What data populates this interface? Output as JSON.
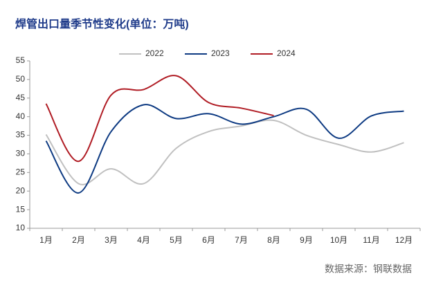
{
  "chart_data": {
    "type": "line",
    "title": "焊管出口量季节性变化(单位：万吨)",
    "source": "数据来源：钢联数据",
    "categories": [
      "1月",
      "2月",
      "3月",
      "4月",
      "5月",
      "6月",
      "7月",
      "8月",
      "9月",
      "10月",
      "11月",
      "12月"
    ],
    "series": [
      {
        "name": "2022",
        "color": "#c0c0c0",
        "values": [
          35.2,
          22,
          26,
          22,
          31.5,
          36,
          37.5,
          39,
          35,
          32.5,
          30.5,
          33
        ]
      },
      {
        "name": "2023",
        "color": "#0d3a82",
        "values": [
          33.5,
          19.5,
          36,
          43.2,
          39.5,
          40.8,
          38,
          40,
          42,
          34.2,
          40.2,
          41.5
        ]
      },
      {
        "name": "2024",
        "color": "#b01c24",
        "values": [
          43.5,
          28,
          45.8,
          47.3,
          51,
          43.8,
          42.3,
          40.3,
          null,
          null,
          null,
          null
        ]
      }
    ],
    "ylim": [
      10,
      55
    ],
    "yticks": [
      10,
      15,
      20,
      25,
      30,
      35,
      40,
      45,
      50,
      55
    ],
    "legend": "top"
  }
}
